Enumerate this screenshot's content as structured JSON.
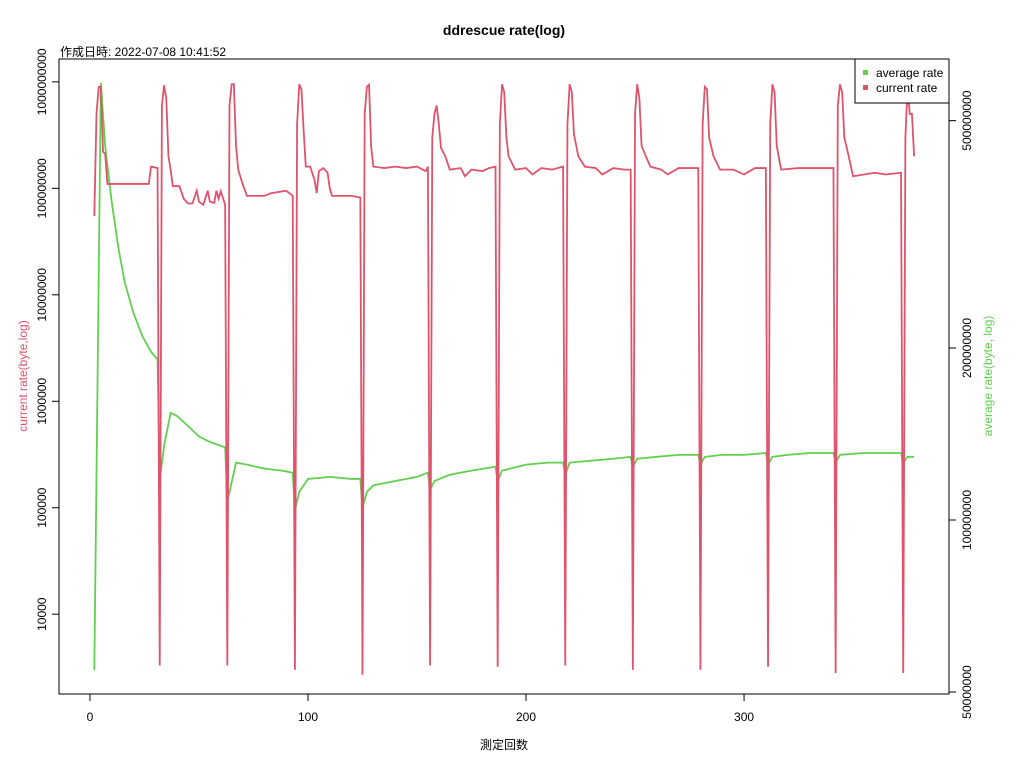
{
  "chart_data": {
    "type": "line",
    "title": "ddrescue rate(log)",
    "subtitle": "作成日時: 2022-07-08 10:41:52",
    "x_label": "測定回数",
    "y_label": "current rate(byte,log)",
    "y2_label": "average rate(byte, log)",
    "xlim": [
      -14.2,
      394
    ],
    "xticks": [
      0,
      100,
      200,
      300
    ],
    "ylim": [
      1780,
      1640000000
    ],
    "yticks": [
      10000,
      100000,
      1000000,
      10000000,
      100000000,
      1000000000
    ],
    "ylog": true,
    "y2lim": [
      49600000,
      641000000
    ],
    "y2ticks": [
      50000000,
      100000000,
      200000000,
      500000000
    ],
    "y2log": true,
    "legend": "top-right",
    "series": [
      {
        "name": "average rate",
        "color": "#61D04F",
        "axis": "y2",
        "x": [
          2,
          5,
          7,
          10,
          13,
          16,
          20,
          24,
          28,
          31,
          32,
          34,
          37,
          40,
          45,
          50,
          55,
          62,
          63,
          64,
          67,
          72,
          80,
          88,
          93,
          94,
          96,
          100,
          110,
          120,
          124,
          125,
          127,
          130,
          140,
          150,
          155,
          156,
          158,
          165,
          175,
          186,
          187,
          189,
          200,
          210,
          217,
          218,
          220,
          230,
          240,
          248,
          249,
          251,
          260,
          270,
          279,
          280,
          282,
          290,
          300,
          310,
          311,
          313,
          320,
          330,
          341,
          342,
          344,
          355,
          365,
          372,
          373,
          375,
          378
        ],
        "values": [
          54600000,
          582000000,
          450000000,
          360000000,
          300000000,
          260000000,
          230000000,
          210000000,
          197000000,
          191000000,
          117000000,
          135000000,
          154000000,
          152000000,
          146000000,
          140000000,
          137000000,
          134000000,
          108000000,
          112000000,
          126000000,
          125000000,
          123000000,
          122000000,
          121000000,
          104000000,
          112000000,
          118000000,
          119000000,
          118000000,
          118000000,
          105000000,
          112000000,
          115000000,
          117000000,
          119000000,
          121000000,
          113000000,
          117000000,
          120000000,
          122000000,
          124000000,
          117000000,
          122000000,
          125000000,
          126000000,
          126000000,
          120000000,
          126000000,
          127000000,
          128000000,
          129000000,
          124000000,
          128000000,
          129000000,
          130000000,
          130000000,
          125000000,
          129000000,
          130000000,
          130000000,
          131000000,
          125000000,
          129000000,
          130000000,
          131000000,
          131000000,
          126000000,
          130000000,
          131000000,
          131000000,
          131000000,
          126000000,
          129000000,
          129000000
        ]
      },
      {
        "name": "current rate",
        "color": "#DF536B",
        "axis": "y",
        "x": [
          2,
          3,
          4,
          5,
          6,
          7,
          8,
          27,
          28,
          31,
          32,
          33,
          34,
          35,
          36,
          37,
          38,
          41,
          43,
          45,
          47,
          49,
          50,
          52,
          54,
          55,
          57,
          58,
          59,
          60,
          62,
          63,
          64,
          65,
          66,
          67,
          68,
          70,
          72,
          80,
          83,
          90,
          93,
          94,
          95,
          96,
          97,
          98,
          99,
          101,
          103,
          104,
          105,
          107,
          109,
          110,
          111,
          120,
          124,
          125,
          126,
          127,
          128,
          129,
          130,
          135,
          140,
          145,
          150,
          154,
          155,
          156,
          157,
          158,
          159,
          160,
          161,
          163,
          165,
          170,
          172,
          175,
          180,
          183,
          186,
          187,
          188,
          189,
          190,
          191,
          192,
          195,
          200,
          203,
          207,
          212,
          217,
          218,
          219,
          220,
          221,
          222,
          224,
          227,
          232,
          235,
          240,
          245,
          248,
          249,
          250,
          251,
          252,
          253,
          255,
          257,
          262,
          265,
          270,
          275,
          279,
          280,
          281,
          282,
          283,
          284,
          286,
          289,
          295,
          300,
          305,
          310,
          311,
          312,
          313,
          314,
          315,
          317,
          325,
          330,
          341,
          342,
          343,
          344,
          345,
          346,
          348,
          350,
          355,
          360,
          365,
          372,
          373,
          374,
          375,
          376,
          377,
          378
        ],
        "values": [
          55000000,
          500000000,
          900000000,
          900000000,
          220000000,
          210000000,
          110000000,
          110000000,
          160000000,
          155000000,
          3300,
          600000000,
          930000000,
          700000000,
          200000000,
          150000000,
          105000000,
          105000000,
          80000000,
          72000000,
          72000000,
          95000000,
          75000000,
          70000000,
          95000000,
          75000000,
          73000000,
          95000000,
          80000000,
          94000000,
          70000000,
          3300,
          600000000,
          950000000,
          950000000,
          250000000,
          150000000,
          110000000,
          85000000,
          85000000,
          90000000,
          95000000,
          85000000,
          3000,
          400000000,
          950000000,
          850000000,
          350000000,
          160000000,
          160000000,
          120000000,
          90000000,
          145000000,
          155000000,
          140000000,
          100000000,
          85000000,
          85000000,
          82000000,
          2700,
          500000000,
          900000000,
          940000000,
          240000000,
          160000000,
          155000000,
          160000000,
          155000000,
          160000000,
          145000000,
          160000000,
          3300,
          300000000,
          500000000,
          600000000,
          400000000,
          240000000,
          200000000,
          150000000,
          155000000,
          130000000,
          150000000,
          145000000,
          155000000,
          160000000,
          3200,
          400000000,
          950000000,
          800000000,
          300000000,
          200000000,
          150000000,
          155000000,
          135000000,
          155000000,
          150000000,
          160000000,
          3300,
          400000000,
          950000000,
          800000000,
          320000000,
          200000000,
          160000000,
          155000000,
          135000000,
          155000000,
          150000000,
          150000000,
          3000,
          500000000,
          950000000,
          700000000,
          250000000,
          200000000,
          160000000,
          150000000,
          135000000,
          155000000,
          155000000,
          155000000,
          3000,
          400000000,
          900000000,
          850000000,
          300000000,
          200000000,
          150000000,
          150000000,
          135000000,
          155000000,
          155000000,
          3200,
          400000000,
          950000000,
          800000000,
          250000000,
          150000000,
          155000000,
          155000000,
          155000000,
          2800,
          600000000,
          950000000,
          800000000,
          300000000,
          200000000,
          130000000,
          135000000,
          140000000,
          135000000,
          140000000,
          2800,
          300000000,
          900000000,
          500000000,
          500000000,
          200000000
        ]
      }
    ]
  }
}
